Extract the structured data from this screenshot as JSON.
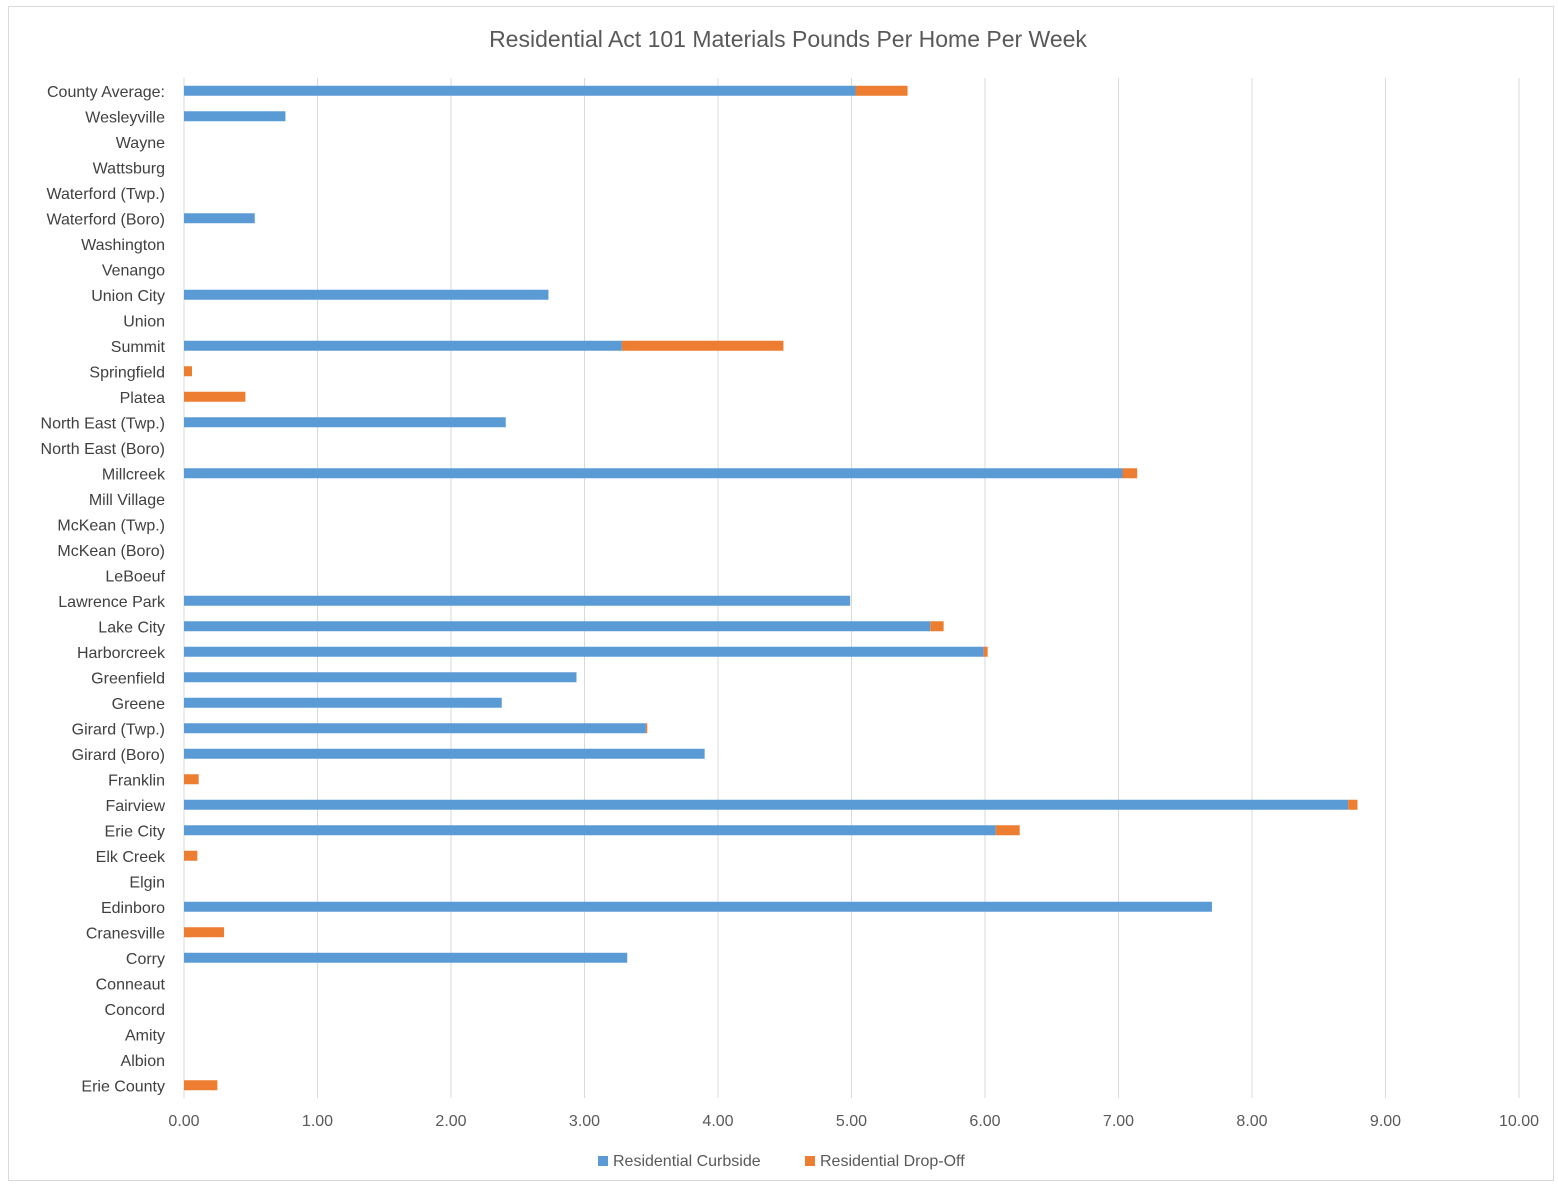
{
  "chart_data": {
    "type": "bar",
    "orientation": "horizontal",
    "stacked": true,
    "title": "Residential Act 101 Materials Pounds Per Home Per Week",
    "xlabel": "",
    "ylabel": "",
    "xlim": [
      0,
      10
    ],
    "x_ticks": [
      "0.00",
      "1.00",
      "2.00",
      "3.00",
      "4.00",
      "5.00",
      "6.00",
      "7.00",
      "8.00",
      "9.00",
      "10.00"
    ],
    "grid": "vertical",
    "legend_position": "bottom",
    "categories": [
      "County Average:",
      "Wesleyville",
      "Wayne",
      "Wattsburg",
      "Waterford (Twp.)",
      "Waterford (Boro)",
      "Washington",
      "Venango",
      "Union City",
      "Union",
      "Summit",
      "Springfield",
      "Platea",
      "North East (Twp.)",
      "North East (Boro)",
      "Millcreek",
      "Mill Village",
      "McKean (Twp.)",
      "McKean (Boro)",
      "LeBoeuf",
      "Lawrence Park",
      "Lake City",
      "Harborcreek",
      "Greenfield",
      "Greene",
      "Girard (Twp.)",
      "Girard (Boro)",
      "Franklin",
      "Fairview",
      "Erie City",
      "Elk Creek",
      "Elgin",
      "Edinboro",
      "Cranesville",
      "Corry",
      "Conneaut",
      "Concord",
      "Amity",
      "Albion",
      "Erie County"
    ],
    "series": [
      {
        "name": "Residential Curbside",
        "color": "#5b9bd5",
        "values": [
          5.03,
          0.76,
          0,
          0,
          0,
          0.53,
          0,
          0,
          2.73,
          0,
          3.28,
          0,
          0,
          2.41,
          0,
          7.03,
          0,
          0,
          0,
          0,
          4.99,
          5.59,
          5.99,
          2.94,
          2.38,
          3.46,
          3.9,
          0,
          8.72,
          6.08,
          0,
          0,
          7.7,
          0,
          3.32,
          0,
          0,
          0,
          0,
          0
        ]
      },
      {
        "name": "Residential Drop-Off",
        "color": "#ed7d31",
        "values": [
          0.39,
          0,
          0,
          0,
          0,
          0,
          0,
          0,
          0,
          0,
          1.21,
          0.06,
          0.46,
          0,
          0,
          0.11,
          0,
          0,
          0,
          0,
          0,
          0.1,
          0.03,
          0,
          0,
          0.01,
          0,
          0.11,
          0.07,
          0.18,
          0.1,
          0,
          0,
          0.3,
          0,
          0,
          0,
          0,
          0,
          0.25
        ]
      }
    ]
  }
}
